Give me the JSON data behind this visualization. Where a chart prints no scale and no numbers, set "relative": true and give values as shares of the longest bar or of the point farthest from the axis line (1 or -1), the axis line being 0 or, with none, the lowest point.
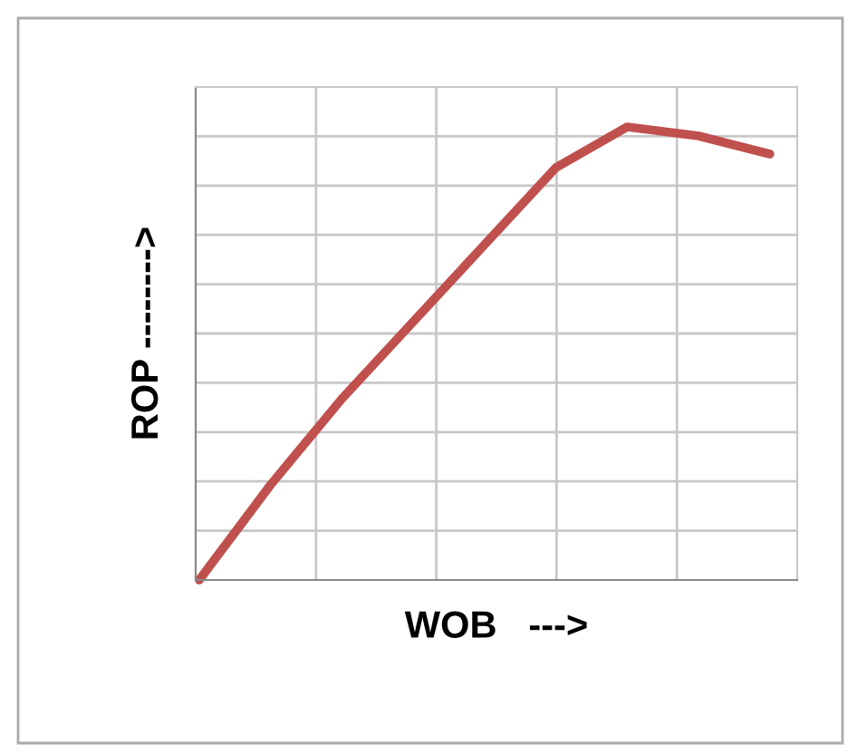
{
  "chart_data": {
    "type": "line",
    "relative": true,
    "xlabel": "WOB   --->",
    "ylabel": "ROP -------->",
    "categories": [
      null,
      null,
      null,
      null,
      null,
      null,
      null,
      null,
      null
    ],
    "series": [
      {
        "color": "#c0504d",
        "values": [
          0,
          0.21,
          0.4,
          0.57,
          0.74,
          0.91,
          1.0,
          0.98,
          0.94
        ]
      }
    ],
    "grid": true,
    "marker": "none",
    "line_style": "solid"
  }
}
